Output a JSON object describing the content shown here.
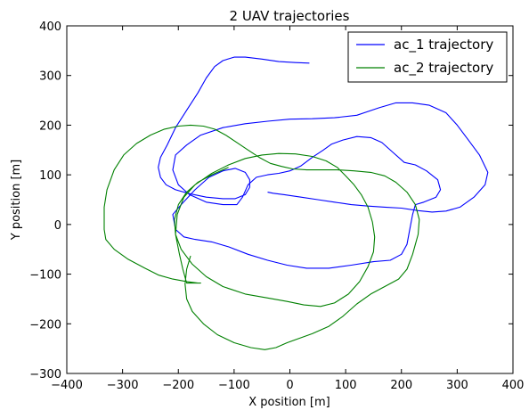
{
  "chart_data": {
    "type": "line",
    "title": "2 UAV trajectories",
    "xlabel": "X position [m]",
    "ylabel": "Y position [m]",
    "xlim": [
      -400,
      400
    ],
    "ylim": [
      -300,
      400
    ],
    "xticks": [
      -400,
      -300,
      -200,
      -100,
      0,
      100,
      200,
      300,
      400
    ],
    "yticks": [
      -300,
      -200,
      -100,
      0,
      100,
      200,
      300,
      400
    ],
    "grid": false,
    "legend_position": "top-right",
    "series": [
      {
        "name": "ac_1 trajectory",
        "color": "#0000ff",
        "points": [
          [
            35,
            325
          ],
          [
            10,
            326
          ],
          [
            -20,
            328
          ],
          [
            -50,
            333
          ],
          [
            -80,
            337
          ],
          [
            -100,
            337
          ],
          [
            -120,
            330
          ],
          [
            -135,
            318
          ],
          [
            -150,
            295
          ],
          [
            -165,
            265
          ],
          [
            -185,
            230
          ],
          [
            -205,
            195
          ],
          [
            -220,
            160
          ],
          [
            -232,
            135
          ],
          [
            -236,
            115
          ],
          [
            -232,
            95
          ],
          [
            -222,
            80
          ],
          [
            -205,
            70
          ],
          [
            -180,
            62
          ],
          [
            -150,
            55
          ],
          [
            -120,
            52
          ],
          [
            -98,
            52
          ],
          [
            -80,
            60
          ],
          [
            -72,
            75
          ],
          [
            -72,
            90
          ],
          [
            -80,
            105
          ],
          [
            -98,
            113
          ],
          [
            -120,
            108
          ],
          [
            -145,
            95
          ],
          [
            -170,
            70
          ],
          [
            -195,
            40
          ],
          [
            -210,
            20
          ],
          [
            -205,
            -10
          ],
          [
            -190,
            -25
          ],
          [
            -170,
            -30
          ],
          [
            -140,
            -35
          ],
          [
            -110,
            -45
          ],
          [
            -75,
            -60
          ],
          [
            -40,
            -72
          ],
          [
            -5,
            -82
          ],
          [
            30,
            -88
          ],
          [
            70,
            -88
          ],
          [
            110,
            -82
          ],
          [
            150,
            -75
          ],
          [
            180,
            -72
          ],
          [
            200,
            -60
          ],
          [
            210,
            -40
          ],
          [
            215,
            -10
          ],
          [
            220,
            20
          ],
          [
            225,
            40
          ],
          [
            240,
            45
          ],
          [
            262,
            55
          ],
          [
            270,
            70
          ],
          [
            265,
            90
          ],
          [
            245,
            108
          ],
          [
            225,
            120
          ],
          [
            205,
            125
          ],
          [
            185,
            145
          ],
          [
            165,
            165
          ],
          [
            145,
            175
          ],
          [
            120,
            177
          ],
          [
            95,
            170
          ],
          [
            75,
            162
          ],
          [
            60,
            150
          ],
          [
            40,
            135
          ],
          [
            20,
            118
          ],
          [
            0,
            108
          ],
          [
            -20,
            103
          ],
          [
            -40,
            100
          ],
          [
            -60,
            95
          ],
          [
            -75,
            80
          ],
          [
            -85,
            55
          ],
          [
            -95,
            40
          ],
          [
            -120,
            40
          ],
          [
            -150,
            45
          ],
          [
            -180,
            60
          ],
          [
            -200,
            80
          ],
          [
            -210,
            110
          ],
          [
            -205,
            140
          ],
          [
            -185,
            160
          ],
          [
            -160,
            180
          ],
          [
            -120,
            195
          ],
          [
            -80,
            203
          ],
          [
            -40,
            208
          ],
          [
            0,
            212
          ],
          [
            40,
            213
          ],
          [
            80,
            215
          ],
          [
            120,
            220
          ],
          [
            160,
            235
          ],
          [
            190,
            245
          ],
          [
            220,
            245
          ],
          [
            250,
            240
          ],
          [
            280,
            225
          ],
          [
            300,
            200
          ],
          [
            320,
            170
          ],
          [
            340,
            140
          ],
          [
            355,
            105
          ],
          [
            350,
            80
          ],
          [
            330,
            55
          ],
          [
            305,
            35
          ],
          [
            280,
            27
          ],
          [
            255,
            25
          ],
          [
            230,
            28
          ],
          [
            200,
            33
          ],
          [
            170,
            35
          ],
          [
            140,
            37
          ],
          [
            110,
            40
          ],
          [
            80,
            45
          ],
          [
            50,
            50
          ],
          [
            20,
            55
          ],
          [
            -10,
            60
          ],
          [
            -30,
            63
          ],
          [
            -40,
            65
          ]
        ]
      },
      {
        "name": "ac_2 trajectory",
        "color": "#008000",
        "points": [
          [
            -178,
            -63
          ],
          [
            -185,
            -90
          ],
          [
            -188,
            -120
          ],
          [
            -185,
            -150
          ],
          [
            -175,
            -175
          ],
          [
            -155,
            -200
          ],
          [
            -130,
            -222
          ],
          [
            -100,
            -238
          ],
          [
            -70,
            -248
          ],
          [
            -45,
            -252
          ],
          [
            -25,
            -248
          ],
          [
            -5,
            -238
          ],
          [
            15,
            -230
          ],
          [
            40,
            -220
          ],
          [
            70,
            -205
          ],
          [
            95,
            -185
          ],
          [
            120,
            -160
          ],
          [
            145,
            -140
          ],
          [
            170,
            -125
          ],
          [
            195,
            -110
          ],
          [
            210,
            -90
          ],
          [
            220,
            -60
          ],
          [
            230,
            -20
          ],
          [
            232,
            10
          ],
          [
            225,
            40
          ],
          [
            210,
            65
          ],
          [
            190,
            85
          ],
          [
            170,
            98
          ],
          [
            145,
            105
          ],
          [
            115,
            108
          ],
          [
            85,
            110
          ],
          [
            55,
            110
          ],
          [
            30,
            110
          ],
          [
            5,
            112
          ],
          [
            -15,
            117
          ],
          [
            -35,
            123
          ],
          [
            -55,
            135
          ],
          [
            -75,
            150
          ],
          [
            -95,
            165
          ],
          [
            -115,
            180
          ],
          [
            -135,
            192
          ],
          [
            -155,
            198
          ],
          [
            -178,
            200
          ],
          [
            -200,
            198
          ],
          [
            -225,
            192
          ],
          [
            -250,
            180
          ],
          [
            -275,
            163
          ],
          [
            -298,
            140
          ],
          [
            -315,
            110
          ],
          [
            -328,
            70
          ],
          [
            -333,
            35
          ],
          [
            -333,
            -10
          ],
          [
            -330,
            -30
          ],
          [
            -315,
            -50
          ],
          [
            -290,
            -70
          ],
          [
            -260,
            -88
          ],
          [
            -235,
            -102
          ],
          [
            -210,
            -110
          ],
          [
            -185,
            -115
          ],
          [
            -165,
            -118
          ],
          [
            -160,
            -118
          ],
          [
            -185,
            -118
          ],
          [
            -192,
            -90
          ],
          [
            -198,
            -60
          ],
          [
            -205,
            -20
          ],
          [
            -202,
            20
          ],
          [
            -190,
            55
          ],
          [
            -170,
            80
          ],
          [
            -140,
            103
          ],
          [
            -110,
            120
          ],
          [
            -80,
            133
          ],
          [
            -50,
            140
          ],
          [
            -20,
            143
          ],
          [
            10,
            142
          ],
          [
            40,
            137
          ],
          [
            65,
            128
          ],
          [
            85,
            115
          ],
          [
            100,
            98
          ],
          [
            115,
            80
          ],
          [
            128,
            60
          ],
          [
            140,
            35
          ],
          [
            148,
            5
          ],
          [
            152,
            -25
          ],
          [
            150,
            -55
          ],
          [
            140,
            -85
          ],
          [
            125,
            -115
          ],
          [
            105,
            -140
          ],
          [
            80,
            -158
          ],
          [
            55,
            -165
          ],
          [
            25,
            -162
          ],
          [
            -5,
            -155
          ],
          [
            -40,
            -148
          ],
          [
            -80,
            -140
          ],
          [
            -120,
            -125
          ],
          [
            -150,
            -105
          ],
          [
            -175,
            -80
          ],
          [
            -195,
            -50
          ],
          [
            -205,
            -20
          ],
          [
            -207,
            10
          ],
          [
            -200,
            40
          ],
          [
            -185,
            65
          ],
          [
            -165,
            85
          ],
          [
            -140,
            100
          ],
          [
            -110,
            115
          ]
        ]
      }
    ]
  }
}
